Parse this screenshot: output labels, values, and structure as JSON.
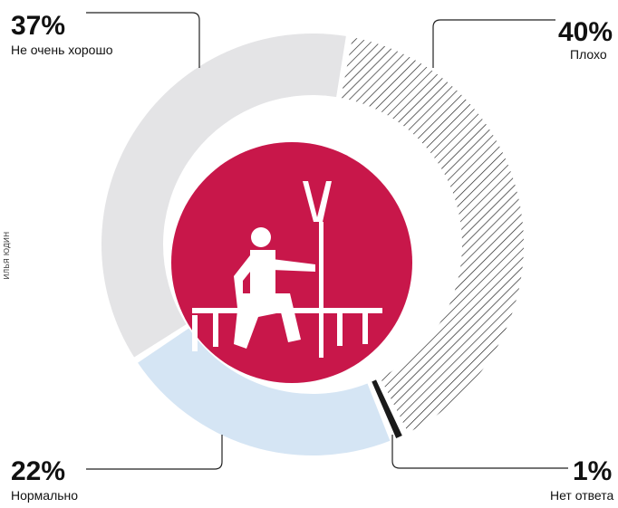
{
  "chart_data": {
    "type": "pie",
    "categories": [
      "Плохо",
      "Нет ответа",
      "Нормально",
      "Не очень хорошо"
    ],
    "values": [
      40,
      1,
      22,
      37
    ],
    "value_labels": [
      "40%",
      "1%",
      "22%",
      "37%"
    ],
    "colors": [
      "#1a1a1a",
      "#1a1a1a",
      "#d5e5f4",
      "#e4e4e6"
    ],
    "hatched": [
      true,
      false,
      false,
      false
    ],
    "credit": "ИЛЬЯ ЮДИН"
  }
}
